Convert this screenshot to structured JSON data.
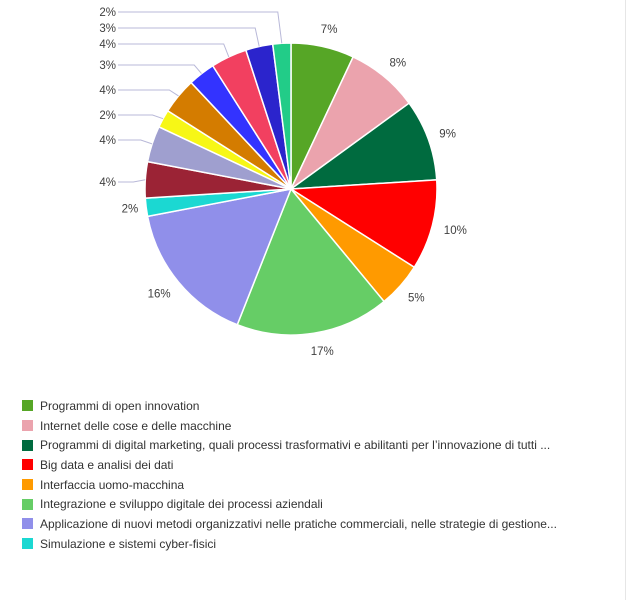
{
  "chart_data": {
    "type": "pie",
    "slices": [
      {
        "label": "Programmi di open innovation",
        "value": 7,
        "value_label": "7%",
        "color": "#56a626"
      },
      {
        "label": "Internet delle cose e delle macchine",
        "value": 8,
        "value_label": "8%",
        "color": "#eba3ad"
      },
      {
        "label": "Programmi di digital marketing, quali processi trasformativi e abilitanti per l’innovazione di tutti ...",
        "value": 9,
        "value_label": "9%",
        "color": "#006b3f"
      },
      {
        "label": "Big data e analisi dei dati",
        "value": 10,
        "value_label": "10%",
        "color": "#ff0000"
      },
      {
        "label": "Interfaccia uomo-macchina",
        "value": 5,
        "value_label": "5%",
        "color": "#ff9a00"
      },
      {
        "label": "Integrazione e sviluppo digitale dei processi aziendali",
        "value": 17,
        "value_label": "17%",
        "color": "#66cd66"
      },
      {
        "label": "Applicazione di nuovi metodi organizzativi nelle pratiche commerciali, nelle strategie di gestione...",
        "value": 16,
        "value_label": "16%",
        "color": "#908fea"
      },
      {
        "label": "Simulazione e sistemi cyber-fisici",
        "value": 2,
        "value_label": "2%",
        "color": "#1bd8d2"
      },
      {
        "label": "",
        "value": 4,
        "value_label": "4%",
        "color": "#9b2335"
      },
      {
        "label": "",
        "value": 4,
        "value_label": "4%",
        "color": "#9f9fcf"
      },
      {
        "label": "",
        "value": 2,
        "value_label": "2%",
        "color": "#f7f716"
      },
      {
        "label": "",
        "value": 4,
        "value_label": "4%",
        "color": "#d47c00"
      },
      {
        "label": "",
        "value": 3,
        "value_label": "3%",
        "color": "#3333ff"
      },
      {
        "label": "",
        "value": 4,
        "value_label": "4%",
        "color": "#f24060"
      },
      {
        "label": "",
        "value": 3,
        "value_label": "3%",
        "color": "#2b24cc"
      },
      {
        "label": "",
        "value": 2,
        "value_label": "2%",
        "color": "#22cc88"
      }
    ],
    "visible_legend_count": 8,
    "legend_placement": "bottom",
    "title": ""
  }
}
